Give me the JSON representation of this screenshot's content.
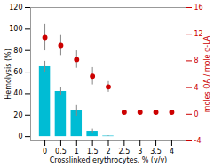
{
  "chart_data": {
    "type": "bar",
    "xlabel": "Crosslinked erythrocytes, % (v/v)",
    "ylabel": "Hemolysis (%)",
    "y2label": "moles OA / mole α-LA",
    "xlim": [
      -0.45,
      4.45
    ],
    "xticks": [
      0,
      0.5,
      1,
      1.5,
      2,
      2.5,
      3,
      3.5,
      4
    ],
    "ylim": [
      -4,
      120
    ],
    "yticks": [
      0,
      20,
      40,
      60,
      80,
      100,
      120
    ],
    "y2lim": [
      -4,
      16
    ],
    "y2ticks": [
      -4,
      0,
      4,
      8,
      12,
      16
    ],
    "grid": false,
    "series": [
      {
        "type": "bar",
        "color": "#00bcd4",
        "x": [
          0,
          0.5,
          1,
          1.5,
          2
        ],
        "values": [
          65,
          42,
          24,
          5,
          0.5
        ],
        "errors": [
          5,
          4,
          5,
          2,
          0.3
        ]
      },
      {
        "type": "scatter",
        "axis": "y2",
        "color": "#cc0000",
        "marker": "circle",
        "x": [
          0,
          0.5,
          1,
          1.5,
          2,
          2.5,
          3,
          3.5,
          4
        ],
        "values": [
          11.5,
          10.3,
          8.2,
          5.7,
          4.1,
          0.3,
          0.3,
          0.3,
          0.3
        ],
        "errors": [
          2.0,
          1.5,
          1.3,
          1.3,
          0.8,
          0.3,
          0.3,
          0.3,
          0.3
        ]
      }
    ]
  }
}
